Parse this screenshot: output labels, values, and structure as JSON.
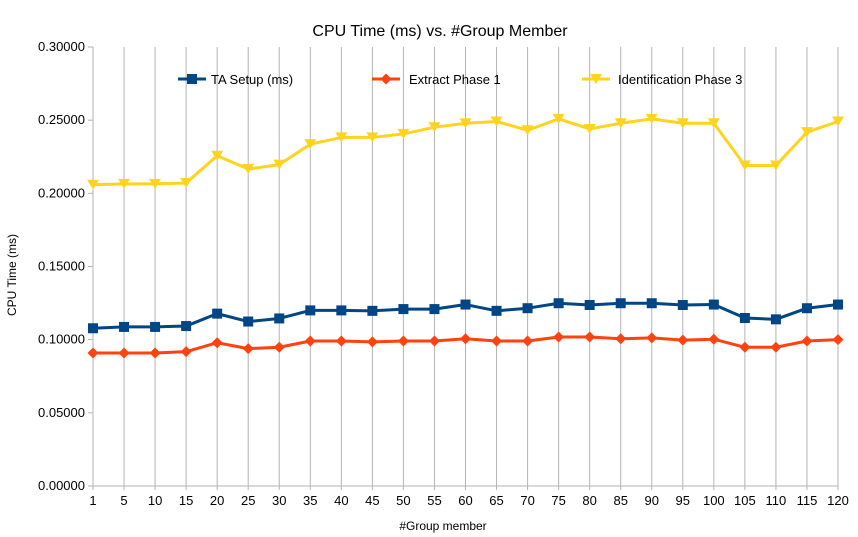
{
  "chart_data": {
    "type": "line",
    "title": "CPU Time (ms) vs. #Group Member",
    "xlabel": "#Group member",
    "ylabel": "CPU Time (ms)",
    "ylim": [
      0,
      0.3
    ],
    "yticks": [
      "0.00000",
      "0.05000",
      "0.10000",
      "0.15000",
      "0.20000",
      "0.25000",
      "0.30000"
    ],
    "categories": [
      "1",
      "5",
      "10",
      "15",
      "20",
      "25",
      "30",
      "35",
      "40",
      "45",
      "50",
      "55",
      "60",
      "65",
      "70",
      "75",
      "80",
      "85",
      "90",
      "95",
      "100",
      "105",
      "110",
      "115",
      "120"
    ],
    "grid": "vertical",
    "legend_position": "top",
    "series": [
      {
        "name": "TA Setup (ms)",
        "color": "#004586",
        "marker": "square",
        "values": [
          0.1078,
          0.1087,
          0.1087,
          0.1093,
          0.1178,
          0.1124,
          0.1145,
          0.12,
          0.12,
          0.1197,
          0.1209,
          0.1209,
          0.124,
          0.1197,
          0.1215,
          0.1249,
          0.1237,
          0.1249,
          0.1249,
          0.1237,
          0.124,
          0.1148,
          0.1139,
          0.1215,
          0.124
        ]
      },
      {
        "name": "Extract Phase 1",
        "color": "#ff420e",
        "marker": "diamond",
        "values": [
          0.0909,
          0.0909,
          0.0909,
          0.0918,
          0.0979,
          0.0939,
          0.0948,
          0.0991,
          0.0991,
          0.0985,
          0.0991,
          0.0991,
          0.1006,
          0.0991,
          0.0991,
          0.1018,
          0.1018,
          0.1006,
          0.1012,
          0.0997,
          0.1003,
          0.0948,
          0.0948,
          0.0991,
          0.1
        ]
      },
      {
        "name": "Identification Phase 3",
        "color": "#ffd320",
        "marker": "triangle-down",
        "values": [
          0.2059,
          0.2065,
          0.2065,
          0.2071,
          0.2257,
          0.2166,
          0.2196,
          0.2336,
          0.2382,
          0.2382,
          0.2406,
          0.2452,
          0.2479,
          0.2491,
          0.2431,
          0.2509,
          0.244,
          0.2479,
          0.2509,
          0.2479,
          0.2479,
          0.219,
          0.219,
          0.2418,
          0.2491
        ]
      }
    ]
  }
}
